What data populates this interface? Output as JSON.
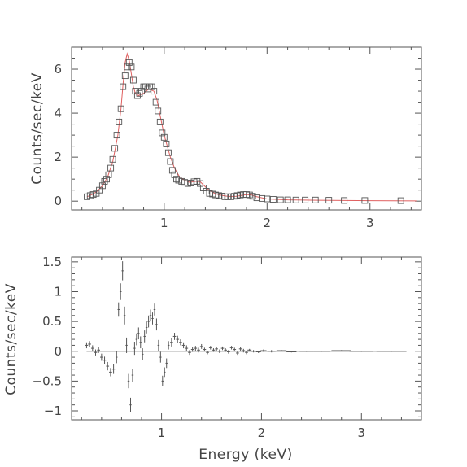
{
  "chart_data": [
    {
      "type": "scatter",
      "ylabel": "Counts/sec/keV",
      "xlabel": "",
      "xlim": [
        0.1,
        3.5
      ],
      "ylim": [
        -0.4,
        7.0
      ],
      "xticks": [
        1,
        2,
        3
      ],
      "yticks": [
        0,
        2,
        4,
        6
      ],
      "grid": false,
      "series": [
        {
          "kind": "data-points-square",
          "color": "#555555",
          "x": [
            0.25,
            0.28,
            0.31,
            0.34,
            0.37,
            0.4,
            0.42,
            0.44,
            0.46,
            0.48,
            0.5,
            0.52,
            0.54,
            0.56,
            0.58,
            0.6,
            0.62,
            0.64,
            0.66,
            0.68,
            0.7,
            0.72,
            0.74,
            0.76,
            0.78,
            0.8,
            0.82,
            0.84,
            0.86,
            0.88,
            0.9,
            0.92,
            0.94,
            0.96,
            0.98,
            1.0,
            1.02,
            1.04,
            1.06,
            1.08,
            1.1,
            1.12,
            1.14,
            1.17,
            1.2,
            1.23,
            1.26,
            1.29,
            1.32,
            1.35,
            1.38,
            1.41,
            1.44,
            1.47,
            1.5,
            1.53,
            1.56,
            1.59,
            1.62,
            1.65,
            1.68,
            1.71,
            1.74,
            1.77,
            1.8,
            1.83,
            1.86,
            1.9,
            1.95,
            2.0,
            2.06,
            2.13,
            2.2,
            2.28,
            2.37,
            2.47,
            2.6,
            2.75,
            2.95,
            3.3
          ],
          "y": [
            0.2,
            0.25,
            0.3,
            0.35,
            0.5,
            0.7,
            0.9,
            1.0,
            1.2,
            1.5,
            1.9,
            2.4,
            3.0,
            3.6,
            4.2,
            5.2,
            5.7,
            6.1,
            6.3,
            6.1,
            5.5,
            5.0,
            4.8,
            4.9,
            5.0,
            5.2,
            5.2,
            5.1,
            5.2,
            5.2,
            5.0,
            4.5,
            4.1,
            3.6,
            3.1,
            2.9,
            2.6,
            2.2,
            1.8,
            1.4,
            1.2,
            1.0,
            0.95,
            0.9,
            0.85,
            0.8,
            0.82,
            0.88,
            0.9,
            0.8,
            0.6,
            0.45,
            0.35,
            0.32,
            0.28,
            0.25,
            0.23,
            0.2,
            0.2,
            0.2,
            0.22,
            0.25,
            0.28,
            0.3,
            0.3,
            0.28,
            0.22,
            0.15,
            0.12,
            0.1,
            0.08,
            0.06,
            0.06,
            0.05,
            0.05,
            0.05,
            0.04,
            0.03,
            0.03,
            0.02
          ]
        },
        {
          "kind": "model-line",
          "color": "#e06060",
          "x": [
            0.25,
            0.3,
            0.35,
            0.4,
            0.45,
            0.5,
            0.55,
            0.58,
            0.6,
            0.62,
            0.64,
            0.66,
            0.68,
            0.7,
            0.72,
            0.75,
            0.8,
            0.85,
            0.9,
            0.93,
            0.96,
            1.0,
            1.03,
            1.06,
            1.1,
            1.15,
            1.2,
            1.25,
            1.3,
            1.35,
            1.4,
            1.45,
            1.5,
            1.55,
            1.6,
            1.65,
            1.7,
            1.75,
            1.8,
            1.85,
            1.9,
            2.0,
            2.2,
            2.5,
            3.0,
            3.45
          ],
          "y": [
            0.2,
            0.3,
            0.45,
            0.7,
            1.1,
            1.8,
            3.0,
            4.2,
            5.3,
            6.3,
            6.7,
            6.4,
            5.8,
            5.2,
            4.9,
            4.8,
            4.9,
            5.1,
            5.0,
            4.6,
            3.9,
            3.0,
            2.5,
            2.0,
            1.5,
            1.1,
            0.95,
            0.85,
            0.9,
            0.88,
            0.65,
            0.45,
            0.33,
            0.27,
            0.23,
            0.21,
            0.22,
            0.26,
            0.3,
            0.28,
            0.2,
            0.1,
            0.06,
            0.04,
            0.02,
            0.01
          ]
        }
      ]
    },
    {
      "type": "scatter",
      "ylabel": "Counts/sec/keV",
      "xlabel": "Energy (keV)",
      "xlim": [
        0.1,
        3.6
      ],
      "ylim": [
        -1.15,
        1.58
      ],
      "xticks": [
        1,
        2,
        3
      ],
      "yticks": [
        -1,
        -0.5,
        0,
        0.5,
        1,
        1.5
      ],
      "ytick_labels": [
        "−1",
        "−0.5",
        "0",
        "0.5",
        "1",
        "1.5"
      ],
      "zero_line": true,
      "grid": false,
      "series": [
        {
          "kind": "residuals-errorbars",
          "color": "#555555",
          "x": [
            0.25,
            0.28,
            0.31,
            0.34,
            0.37,
            0.4,
            0.43,
            0.46,
            0.49,
            0.52,
            0.55,
            0.57,
            0.59,
            0.61,
            0.63,
            0.65,
            0.67,
            0.69,
            0.71,
            0.73,
            0.75,
            0.77,
            0.79,
            0.81,
            0.83,
            0.85,
            0.87,
            0.89,
            0.91,
            0.93,
            0.95,
            0.97,
            0.99,
            1.01,
            1.03,
            1.05,
            1.07,
            1.1,
            1.13,
            1.16,
            1.19,
            1.22,
            1.25,
            1.28,
            1.31,
            1.34,
            1.37,
            1.4,
            1.43,
            1.46,
            1.49,
            1.52,
            1.55,
            1.58,
            1.61,
            1.64,
            1.67,
            1.7,
            1.73,
            1.76,
            1.79,
            1.82,
            1.85,
            1.88,
            1.92,
            1.97,
            2.02,
            2.1,
            2.2,
            2.3,
            2.45,
            2.6,
            2.8,
            3.0,
            3.3
          ],
          "y": [
            0.1,
            0.12,
            0.05,
            -0.02,
            0.02,
            -0.1,
            -0.15,
            -0.25,
            -0.35,
            -0.3,
            -0.1,
            0.7,
            1.0,
            1.35,
            0.6,
            0.1,
            -0.5,
            -0.9,
            -0.4,
            0.05,
            0.2,
            0.3,
            0.15,
            -0.05,
            0.25,
            0.4,
            0.5,
            0.6,
            0.55,
            0.7,
            0.45,
            0.1,
            -0.1,
            -0.5,
            -0.35,
            -0.2,
            0.1,
            0.15,
            0.25,
            0.2,
            0.15,
            0.1,
            0.05,
            -0.02,
            0.03,
            0.05,
            0.02,
            0.08,
            0.03,
            -0.02,
            0.06,
            0.02,
            0.04,
            0.0,
            0.05,
            0.02,
            -0.01,
            0.06,
            0.03,
            -0.03,
            0.04,
            0.01,
            -0.02,
            0.02,
            0.0,
            -0.01,
            0.01,
            0.0,
            0.01,
            -0.01,
            0.0,
            0.0,
            0.01,
            0.0,
            0.0
          ],
          "err": [
            0.05,
            0.05,
            0.05,
            0.05,
            0.05,
            0.06,
            0.06,
            0.07,
            0.07,
            0.08,
            0.1,
            0.12,
            0.14,
            0.16,
            0.15,
            0.13,
            0.12,
            0.12,
            0.11,
            0.11,
            0.1,
            0.1,
            0.1,
            0.1,
            0.1,
            0.1,
            0.1,
            0.1,
            0.1,
            0.1,
            0.1,
            0.09,
            0.09,
            0.09,
            0.08,
            0.08,
            0.07,
            0.07,
            0.06,
            0.06,
            0.05,
            0.05,
            0.05,
            0.04,
            0.04,
            0.04,
            0.04,
            0.04,
            0.03,
            0.03,
            0.03,
            0.03,
            0.03,
            0.03,
            0.03,
            0.03,
            0.03,
            0.03,
            0.03,
            0.03,
            0.03,
            0.03,
            0.03,
            0.02,
            0.02,
            0.02,
            0.02,
            0.02,
            0.01,
            0.01,
            0.01,
            0.01,
            0.01,
            0.01,
            0.01
          ],
          "xerr": [
            0.015,
            0.015,
            0.015,
            0.015,
            0.015,
            0.015,
            0.015,
            0.015,
            0.015,
            0.015,
            0.01,
            0.01,
            0.01,
            0.01,
            0.01,
            0.01,
            0.01,
            0.01,
            0.01,
            0.01,
            0.01,
            0.01,
            0.01,
            0.01,
            0.01,
            0.01,
            0.01,
            0.01,
            0.01,
            0.01,
            0.01,
            0.01,
            0.01,
            0.01,
            0.01,
            0.01,
            0.01,
            0.015,
            0.015,
            0.015,
            0.015,
            0.015,
            0.015,
            0.015,
            0.015,
            0.015,
            0.015,
            0.015,
            0.015,
            0.015,
            0.015,
            0.015,
            0.015,
            0.015,
            0.015,
            0.015,
            0.015,
            0.015,
            0.015,
            0.015,
            0.015,
            0.015,
            0.015,
            0.02,
            0.02,
            0.025,
            0.03,
            0.04,
            0.05,
            0.05,
            0.07,
            0.08,
            0.1,
            0.12,
            0.15
          ]
        }
      ]
    }
  ]
}
